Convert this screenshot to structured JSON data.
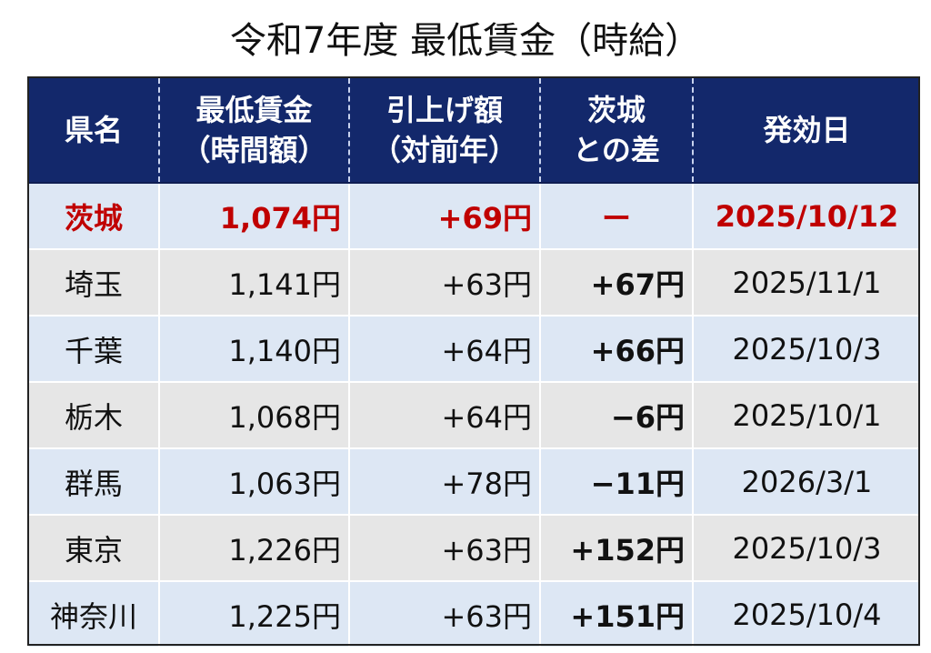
{
  "title": "令和7年度 最低賃金（時給）",
  "header": {
    "prefecture": "県名",
    "min_wage_line1": "最低賃金",
    "min_wage_line2": "（時間額）",
    "raise_line1": "引上げ額",
    "raise_line2": "（対前年）",
    "diff_line1": "茨城",
    "diff_line2": "との差",
    "effective_date": "発効日"
  },
  "rows": [
    {
      "prefecture": "茨城",
      "min_wage": "1,074円",
      "raise": "+69円",
      "diff": "ー",
      "effective_date": "2025/10/12"
    },
    {
      "prefecture": "埼玉",
      "min_wage": "1,141円",
      "raise": "+63円",
      "diff": "+67円",
      "effective_date": "2025/11/1"
    },
    {
      "prefecture": "千葉",
      "min_wage": "1,140円",
      "raise": "+64円",
      "diff": "+66円",
      "effective_date": "2025/10/3"
    },
    {
      "prefecture": "栃木",
      "min_wage": "1,068円",
      "raise": "+64円",
      "diff": "−6円",
      "effective_date": "2025/10/1"
    },
    {
      "prefecture": "群馬",
      "min_wage": "1,063円",
      "raise": "+78円",
      "diff": "−11円",
      "effective_date": "2026/3/1"
    },
    {
      "prefecture": "東京",
      "min_wage": "1,226円",
      "raise": "+63円",
      "diff": "+152円",
      "effective_date": "2025/10/3"
    },
    {
      "prefecture": "神奈川",
      "min_wage": "1,225円",
      "raise": "+63円",
      "diff": "+151円",
      "effective_date": "2025/10/4"
    }
  ],
  "colors": {
    "header_bg": "#13286b",
    "header_text": "#ffffff",
    "highlight_text": "#c00000",
    "row_blue": "#dde7f4",
    "row_gray": "#e6e6e6"
  }
}
